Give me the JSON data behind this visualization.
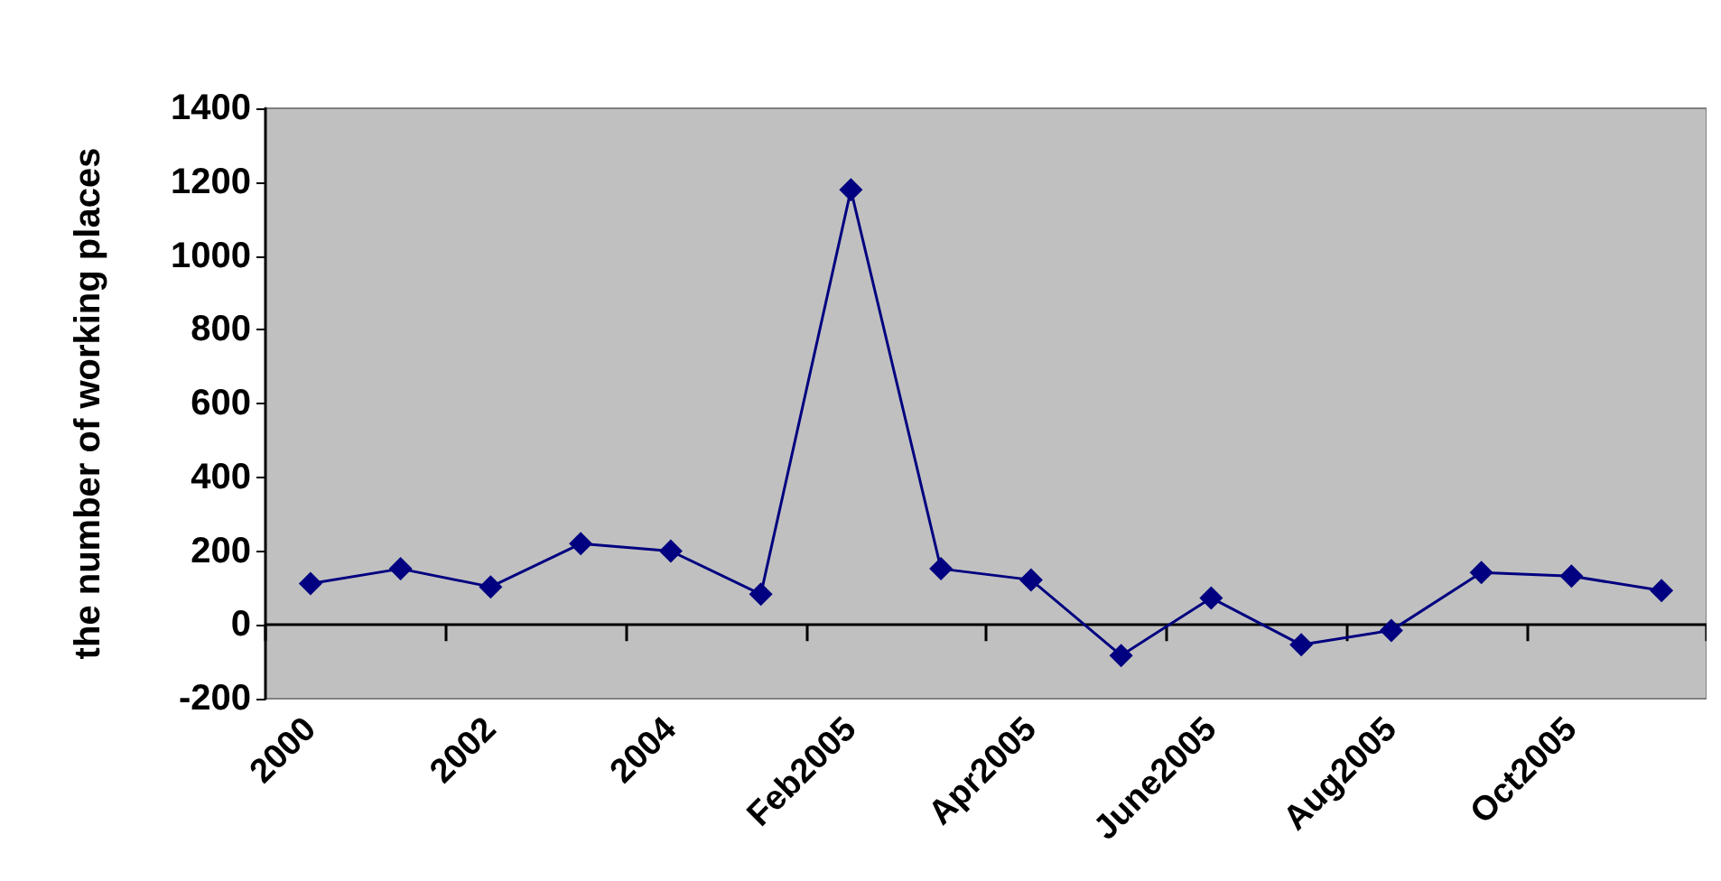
{
  "chart_data": {
    "type": "line",
    "ylabel": "the number of working places",
    "categories": [
      "2000",
      null,
      "2002",
      null,
      "2004",
      null,
      "Feb2005",
      null,
      "Apr2005",
      null,
      "June2005",
      null,
      "Aug2005",
      null,
      "Oct2005",
      null
    ],
    "series": [
      {
        "color": "#000080",
        "values": [
          112,
          152,
          103,
          220,
          200,
          83,
          1179,
          152,
          122,
          -83,
          73,
          -54,
          -15,
          142,
          132,
          93
        ]
      }
    ],
    "ylim": [
      -200,
      1400
    ],
    "yticks": [
      -200,
      0,
      200,
      400,
      600,
      800,
      1000,
      1200,
      1400
    ],
    "marker": "diamond",
    "line_style": "solid"
  }
}
